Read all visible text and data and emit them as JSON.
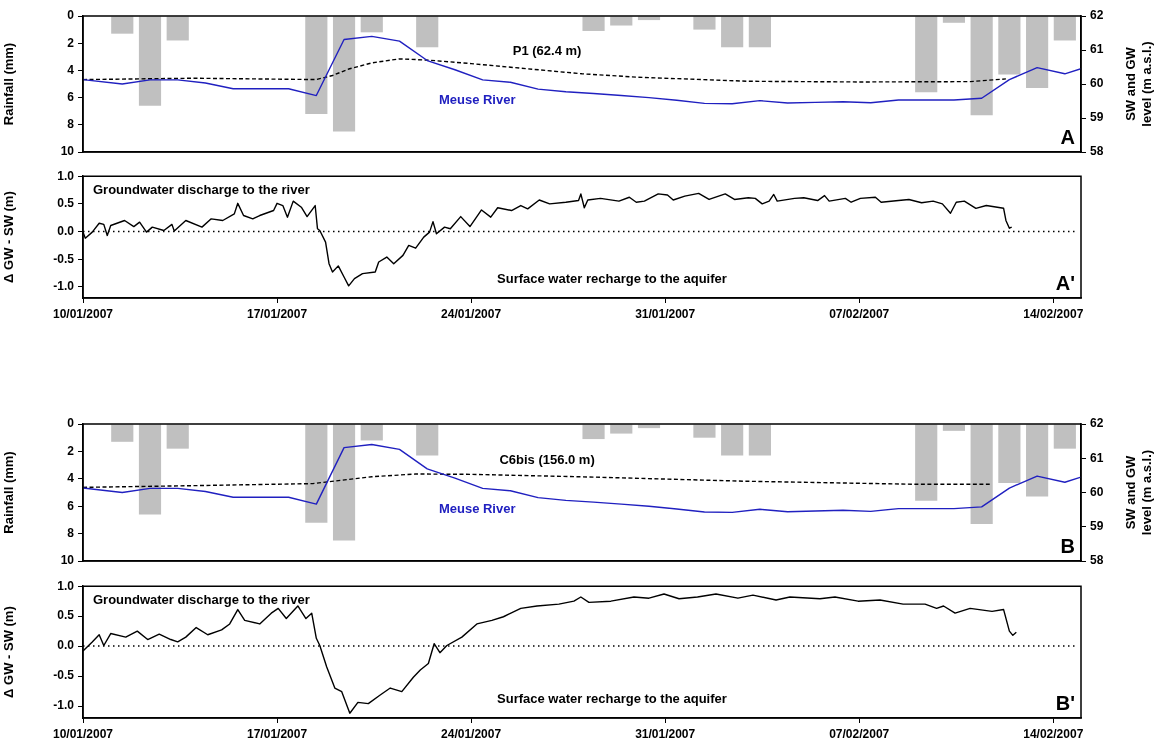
{
  "chart_data": [
    {
      "type": "bar",
      "ylabel": "Rainfall (mm)",
      "y2label": "SW and GW level (m a.s.l.)",
      "annotations": [
        "A"
      ],
      "xlim": [
        "2007-01-10",
        "2007-02-15"
      ],
      "ylim": [
        10,
        0
      ],
      "yticks": [
        0,
        2,
        4,
        6,
        8,
        10
      ],
      "y2lim": [
        58,
        62
      ],
      "y2ticks": [
        58,
        59,
        60,
        61,
        62
      ],
      "tick_labels": "y",
      "marker": "none",
      "series": [
        {
          "type": "bar",
          "color": "#c0c0c0",
          "x": [
            "2007-01-11T10:00",
            "2007-01-12T10:00",
            "2007-01-13T10:00",
            "2007-01-18T10:00",
            "2007-01-19T10:00",
            "2007-01-20T10:00",
            "2007-01-22T10:00",
            "2007-01-28T10:00",
            "2007-01-29T10:00",
            "2007-01-30T10:00",
            "2007-02-01T10:00",
            "2007-02-02T10:00",
            "2007-02-03T10:00",
            "2007-02-09T10:00",
            "2007-02-10T10:00",
            "2007-02-11T10:00",
            "2007-02-12T10:00",
            "2007-02-13T10:00",
            "2007-02-14T10:00"
          ],
          "values": [
            1.3,
            6.6,
            1.8,
            7.2,
            8.5,
            1.2,
            2.3,
            1.1,
            0.7,
            0.3,
            1.0,
            2.3,
            2.3,
            5.6,
            0.5,
            7.3,
            4.3,
            5.3,
            1.8
          ]
        },
        {
          "type": "line",
          "name": "Meuse River",
          "color": "#2020c0",
          "axis": "y2",
          "x": [
            "2007-01-10T00:00",
            "2007-01-11T10:00",
            "2007-01-12T10:00",
            "2007-01-13T10:00",
            "2007-01-14T10:00",
            "2007-01-15T10:00",
            "2007-01-16T10:00",
            "2007-01-17T10:00",
            "2007-01-18T10:00",
            "2007-01-19T10:00",
            "2007-01-20T10:00",
            "2007-01-21T10:00",
            "2007-01-22T10:00",
            "2007-01-23T10:00",
            "2007-01-24T10:00",
            "2007-01-25T10:00",
            "2007-01-26T10:00",
            "2007-01-27T10:00",
            "2007-01-28T10:00",
            "2007-01-29T10:00",
            "2007-01-30T10:00",
            "2007-01-31T10:00",
            "2007-02-01T10:00",
            "2007-02-02T10:00",
            "2007-02-03T10:00",
            "2007-02-04T10:00",
            "2007-02-05T10:00",
            "2007-02-06T10:00",
            "2007-02-07T10:00",
            "2007-02-08T10:00",
            "2007-02-09T10:00",
            "2007-02-10T10:00",
            "2007-02-11T10:00",
            "2007-02-12T10:00",
            "2007-02-13T10:00",
            "2007-02-14T10:00",
            "2007-02-15T00:00"
          ],
          "values": [
            60.13,
            60.0,
            60.12,
            60.12,
            60.03,
            59.86,
            59.86,
            59.86,
            59.66,
            61.31,
            61.4,
            61.26,
            60.69,
            60.42,
            60.12,
            60.05,
            59.85,
            59.77,
            59.72,
            59.66,
            59.6,
            59.52,
            59.43,
            59.42,
            59.51,
            59.44,
            59.46,
            59.48,
            59.45,
            59.53,
            59.53,
            59.53,
            59.58,
            60.13,
            60.48,
            60.3,
            60.45
          ]
        },
        {
          "type": "line",
          "name": "P1 (62.4 m)",
          "color": "#000000",
          "axis": "y2",
          "line_style": "dashed",
          "x": [
            "2007-01-10T00:00",
            "2007-01-14T00:00",
            "2007-01-18T10:00",
            "2007-01-19T00:00",
            "2007-01-19T14:00",
            "2007-01-20T10:00",
            "2007-01-21T10:00",
            "2007-01-22T12:00",
            "2007-01-24T00:00",
            "2007-01-26T00:00",
            "2007-01-28T00:00",
            "2007-01-30T00:00",
            "2007-02-03T00:00",
            "2007-02-07T00:00",
            "2007-02-11T00:00",
            "2007-02-12T07:00"
          ],
          "values": [
            60.13,
            60.17,
            60.13,
            60.25,
            60.44,
            60.62,
            60.74,
            60.7,
            60.6,
            60.45,
            60.3,
            60.2,
            60.08,
            60.06,
            60.07,
            60.15
          ]
        }
      ]
    },
    {
      "type": "line",
      "ylabel": "Δ GW - SW (m)",
      "annotations": [
        "Groundwater discharge to the river",
        "Surface water recharge to the aquifer",
        "A'"
      ],
      "xlim": [
        "2007-01-10",
        "2007-02-15"
      ],
      "xticks": [
        {
          "value": "2007-01-10",
          "label": "10/01/2007"
        },
        {
          "value": "2007-01-17",
          "label": "17/01/2007"
        },
        {
          "value": "2007-01-24",
          "label": "24/01/2007"
        },
        {
          "value": "2007-01-31",
          "label": "31/01/2007"
        },
        {
          "value": "2007-02-07",
          "label": "07/02/2007"
        },
        {
          "value": "2007-02-14",
          "label": "14/02/2007"
        }
      ],
      "ylim": [
        -1.2,
        1.0
      ],
      "yticks": [
        {
          "value": -1,
          "label": "-1.0"
        },
        -0.5,
        {
          "value": 0,
          "label": "0.0"
        },
        0.5,
        {
          "value": 1,
          "label": "1.0"
        }
      ],
      "marker": "none",
      "ref_lines": [
        {
          "axis": "y",
          "value": 0,
          "line_style": "dotted",
          "color": "#000000"
        }
      ],
      "series": [
        {
          "color": "#000000",
          "x": [
            "2007-01-10T00:00",
            "2007-01-10T02:00",
            "2007-01-10T08:00",
            "2007-01-10T14:00",
            "2007-01-10T18:00",
            "2007-01-10T21:00",
            "2007-01-11T00:00",
            "2007-01-11T12:00",
            "2007-01-11T20:00",
            "2007-01-12T01:00",
            "2007-01-12T07:00",
            "2007-01-12T12:00",
            "2007-01-12T22:00",
            "2007-01-13T05:00",
            "2007-01-13T07:00",
            "2007-01-13T17:00",
            "2007-01-14T07:00",
            "2007-01-14T15:00",
            "2007-01-15T01:00",
            "2007-01-15T11:00",
            "2007-01-15T14:00",
            "2007-01-15T19:00",
            "2007-01-16T03:00",
            "2007-01-16T09:00",
            "2007-01-16T21:00",
            "2007-01-17T00:00",
            "2007-01-17T05:00",
            "2007-01-17T09:00",
            "2007-01-17T14:00",
            "2007-01-17T21:00",
            "2007-01-18T02:00",
            "2007-01-18T09:00",
            "2007-01-18T11:00",
            "2007-01-18T13:00",
            "2007-01-18T18:00",
            "2007-01-18T21:00",
            "2007-01-19T00:00",
            "2007-01-19T05:00",
            "2007-01-19T10:00",
            "2007-01-19T14:00",
            "2007-01-19T19:00",
            "2007-01-20T02:00",
            "2007-01-20T13:00",
            "2007-01-20T16:00",
            "2007-01-20T23:00",
            "2007-01-21T05:00",
            "2007-01-21T13:00",
            "2007-01-21T18:00",
            "2007-01-22T00:00",
            "2007-01-22T07:00",
            "2007-01-22T12:00",
            "2007-01-22T15:00",
            "2007-01-22T18:00",
            "2007-01-23T01:00",
            "2007-01-23T06:00",
            "2007-01-23T15:00",
            "2007-01-23T23:00",
            "2007-01-24T09:00",
            "2007-01-24T17:00",
            "2007-01-24T23:00",
            "2007-01-25T11:00",
            "2007-01-25T19:00",
            "2007-01-26T01:00",
            "2007-01-26T11:00",
            "2007-01-26T20:00",
            "2007-01-27T10:00",
            "2007-01-27T21:00",
            "2007-01-27T23:00",
            "2007-01-28T02:00",
            "2007-01-28T05:00",
            "2007-01-28T16:00",
            "2007-01-29T08:00",
            "2007-01-29T17:00",
            "2007-01-29T23:00",
            "2007-01-30T06:00",
            "2007-01-30T18:00",
            "2007-01-31T02:00",
            "2007-01-31T07:00",
            "2007-01-31T17:00",
            "2007-02-01T05:00",
            "2007-02-01T14:00",
            "2007-02-02T04:00",
            "2007-02-02T12:00",
            "2007-02-03T00:00",
            "2007-02-03T06:00",
            "2007-02-03T12:00",
            "2007-02-03T18:00",
            "2007-02-03T22:00",
            "2007-02-04T01:00",
            "2007-02-04T16:00",
            "2007-02-05T00:00",
            "2007-02-05T12:00",
            "2007-02-05T18:00",
            "2007-02-05T22:00",
            "2007-02-06T12:00",
            "2007-02-06T17:00",
            "2007-02-07T01:00",
            "2007-02-07T14:00",
            "2007-02-07T19:00",
            "2007-02-08T10:00",
            "2007-02-08T19:00",
            "2007-02-09T06:00",
            "2007-02-09T16:00",
            "2007-02-10T00:00",
            "2007-02-10T07:00",
            "2007-02-10T12:00",
            "2007-02-10T19:00",
            "2007-02-11T05:00",
            "2007-02-11T14:00",
            "2007-02-12T05:00",
            "2007-02-12T07:00",
            "2007-02-12T10:00",
            "2007-02-12T12:00"
          ],
          "values": [
            -0.01,
            -0.12,
            -0.01,
            0.15,
            0.13,
            -0.07,
            0.11,
            0.2,
            0.09,
            0.17,
            -0.01,
            0.08,
            0.02,
            0.13,
            0.01,
            0.2,
            0.08,
            0.23,
            0.2,
            0.32,
            0.51,
            0.29,
            0.23,
            0.29,
            0.38,
            0.51,
            0.47,
            0.26,
            0.55,
            0.44,
            0.27,
            0.47,
            0.05,
            0.02,
            -0.19,
            -0.58,
            -0.73,
            -0.62,
            -0.82,
            -0.98,
            -0.85,
            -0.76,
            -0.73,
            -0.55,
            -0.46,
            -0.58,
            -0.43,
            -0.25,
            -0.3,
            -0.1,
            -0.01,
            0.18,
            -0.04,
            0.08,
            0.05,
            0.27,
            0.09,
            0.39,
            0.26,
            0.43,
            0.38,
            0.47,
            0.41,
            0.57,
            0.5,
            0.53,
            0.56,
            0.68,
            0.43,
            0.57,
            0.6,
            0.55,
            0.62,
            0.53,
            0.55,
            0.68,
            0.66,
            0.57,
            0.64,
            0.69,
            0.58,
            0.68,
            0.58,
            0.61,
            0.6,
            0.5,
            0.55,
            0.67,
            0.55,
            0.6,
            0.61,
            0.56,
            0.65,
            0.55,
            0.6,
            0.53,
            0.6,
            0.62,
            0.53,
            0.56,
            0.58,
            0.52,
            0.55,
            0.5,
            0.33,
            0.53,
            0.55,
            0.42,
            0.47,
            0.42,
            0.2,
            0.06,
            0.08
          ]
        }
      ]
    },
    {
      "type": "bar",
      "ylabel": "Rainfall (mm)",
      "y2label": "SW and GW level (m a.s.l.)",
      "annotations": [
        "B"
      ],
      "xlim": [
        "2007-01-10",
        "2007-02-15"
      ],
      "ylim": [
        10,
        0
      ],
      "yticks": [
        0,
        2,
        4,
        6,
        8,
        10
      ],
      "y2lim": [
        58,
        62
      ],
      "y2ticks": [
        58,
        59,
        60,
        61,
        62
      ],
      "tick_labels": "y",
      "marker": "none",
      "series": [
        {
          "type": "bar",
          "color": "#c0c0c0",
          "x": [
            "2007-01-11T10:00",
            "2007-01-12T10:00",
            "2007-01-13T10:00",
            "2007-01-18T10:00",
            "2007-01-19T10:00",
            "2007-01-20T10:00",
            "2007-01-22T10:00",
            "2007-01-28T10:00",
            "2007-01-29T10:00",
            "2007-01-30T10:00",
            "2007-02-01T10:00",
            "2007-02-02T10:00",
            "2007-02-03T10:00",
            "2007-02-09T10:00",
            "2007-02-10T10:00",
            "2007-02-11T10:00",
            "2007-02-12T10:00",
            "2007-02-13T10:00",
            "2007-02-14T10:00"
          ],
          "values": [
            1.3,
            6.6,
            1.8,
            7.2,
            8.5,
            1.2,
            2.3,
            1.1,
            0.7,
            0.3,
            1.0,
            2.3,
            2.3,
            5.6,
            0.5,
            7.3,
            4.3,
            5.3,
            1.8
          ]
        },
        {
          "type": "line",
          "name": "Meuse River",
          "color": "#2020c0",
          "axis": "y2",
          "x": [
            "2007-01-10T00:00",
            "2007-01-11T10:00",
            "2007-01-12T10:00",
            "2007-01-13T10:00",
            "2007-01-14T10:00",
            "2007-01-15T10:00",
            "2007-01-16T10:00",
            "2007-01-17T10:00",
            "2007-01-18T10:00",
            "2007-01-19T10:00",
            "2007-01-20T10:00",
            "2007-01-21T10:00",
            "2007-01-22T10:00",
            "2007-01-23T10:00",
            "2007-01-24T10:00",
            "2007-01-25T10:00",
            "2007-01-26T10:00",
            "2007-01-27T10:00",
            "2007-01-28T10:00",
            "2007-01-29T10:00",
            "2007-01-30T10:00",
            "2007-01-31T10:00",
            "2007-02-01T10:00",
            "2007-02-02T10:00",
            "2007-02-03T10:00",
            "2007-02-04T10:00",
            "2007-02-05T10:00",
            "2007-02-06T10:00",
            "2007-02-07T10:00",
            "2007-02-08T10:00",
            "2007-02-09T10:00",
            "2007-02-10T10:00",
            "2007-02-11T10:00",
            "2007-02-12T10:00",
            "2007-02-13T10:00",
            "2007-02-14T10:00",
            "2007-02-15T00:00"
          ],
          "values": [
            60.13,
            60.0,
            60.12,
            60.12,
            60.03,
            59.86,
            59.86,
            59.86,
            59.66,
            61.31,
            61.4,
            61.26,
            60.69,
            60.42,
            60.12,
            60.05,
            59.85,
            59.77,
            59.72,
            59.66,
            59.6,
            59.52,
            59.43,
            59.42,
            59.51,
            59.44,
            59.46,
            59.48,
            59.45,
            59.53,
            59.53,
            59.53,
            59.58,
            60.13,
            60.48,
            60.3,
            60.45
          ]
        },
        {
          "type": "line",
          "name": "C6bis (156.0 m)",
          "color": "#000000",
          "axis": "y2",
          "line_style": "dashed",
          "x": [
            "2007-01-10T00:00",
            "2007-01-14T00:00",
            "2007-01-18T07:00",
            "2007-01-20T10:00",
            "2007-01-22T00:00",
            "2007-01-24T00:00",
            "2007-01-28T10:00",
            "2007-02-02T20:00",
            "2007-02-09T00:00",
            "2007-02-11T17:00"
          ],
          "values": [
            60.15,
            60.2,
            60.26,
            60.46,
            60.54,
            60.53,
            60.45,
            60.33,
            60.24,
            60.24
          ]
        }
      ]
    },
    {
      "type": "line",
      "ylabel": "Δ GW - SW (m)",
      "annotations": [
        "Groundwater discharge to the river",
        "Surface water recharge to the aquifer",
        "B'"
      ],
      "xlim": [
        "2007-01-10",
        "2007-02-15"
      ],
      "xticks": [
        {
          "value": "2007-01-10",
          "label": "10/01/2007"
        },
        {
          "value": "2007-01-17",
          "label": "17/01/2007"
        },
        {
          "value": "2007-01-24",
          "label": "24/01/2007"
        },
        {
          "value": "2007-01-31",
          "label": "31/01/2007"
        },
        {
          "value": "2007-02-07",
          "label": "07/02/2007"
        },
        {
          "value": "2007-02-14",
          "label": "14/02/2007"
        }
      ],
      "ylim": [
        -1.2,
        1.0
      ],
      "yticks": [
        {
          "value": -1,
          "label": "-1.0"
        },
        -0.5,
        {
          "value": 0,
          "label": "0.0"
        },
        0.5,
        {
          "value": 1,
          "label": "1.0"
        }
      ],
      "marker": "none",
      "ref_lines": [
        {
          "axis": "y",
          "value": 0,
          "line_style": "dotted",
          "color": "#000000"
        }
      ],
      "series": [
        {
          "color": "#000000",
          "x": [
            "2007-01-10T00:00",
            "2007-01-10T08:00",
            "2007-01-10T14:00",
            "2007-01-10T18:00",
            "2007-01-11T00:00",
            "2007-01-11T13:00",
            "2007-01-11T23:00",
            "2007-01-12T08:00",
            "2007-01-12T18:00",
            "2007-01-13T04:00",
            "2007-01-13T10:00",
            "2007-01-13T17:00",
            "2007-01-14T02:00",
            "2007-01-14T12:00",
            "2007-01-15T00:00",
            "2007-01-15T07:00",
            "2007-01-15T14:00",
            "2007-01-15T20:00",
            "2007-01-16T09:00",
            "2007-01-16T19:00",
            "2007-01-17T01:00",
            "2007-01-17T08:00",
            "2007-01-17T18:00",
            "2007-01-18T01:00",
            "2007-01-18T06:00",
            "2007-01-18T10:00",
            "2007-01-18T13:00",
            "2007-01-18T19:00",
            "2007-01-19T02:00",
            "2007-01-19T08:00",
            "2007-01-19T15:00",
            "2007-01-19T22:00",
            "2007-01-20T07:00",
            "2007-01-20T17:00",
            "2007-01-21T02:00",
            "2007-01-21T12:00",
            "2007-01-21T22:00",
            "2007-01-22T04:00",
            "2007-01-22T11:00",
            "2007-01-22T16:00",
            "2007-01-22T21:00",
            "2007-01-23T03:00",
            "2007-01-23T16:00",
            "2007-01-24T05:00",
            "2007-01-24T18:00",
            "2007-01-25T04:00",
            "2007-01-25T19:00",
            "2007-01-26T09:00",
            "2007-01-27T04:00",
            "2007-01-27T17:00",
            "2007-01-27T23:00",
            "2007-01-28T06:00",
            "2007-01-29T01:00",
            "2007-01-29T21:00",
            "2007-01-30T10:00",
            "2007-01-30T23:00",
            "2007-01-31T12:00",
            "2007-02-01T04:00",
            "2007-02-01T20:00",
            "2007-02-02T15:00",
            "2007-02-03T04:00",
            "2007-02-04T00:00",
            "2007-02-04T12:00",
            "2007-02-05T14:00",
            "2007-02-06T03:00",
            "2007-02-06T23:00",
            "2007-02-07T18:00",
            "2007-02-08T14:00",
            "2007-02-09T09:00",
            "2007-02-09T19:00",
            "2007-02-10T01:00",
            "2007-02-10T11:00",
            "2007-02-11T00:00",
            "2007-02-11T19:00",
            "2007-02-12T05:00",
            "2007-02-12T10:00",
            "2007-02-12T13:00",
            "2007-02-12T16:00"
          ],
          "values": [
            -0.08,
            0.07,
            0.19,
            0.01,
            0.21,
            0.15,
            0.25,
            0.11,
            0.2,
            0.11,
            0.07,
            0.15,
            0.31,
            0.19,
            0.27,
            0.37,
            0.61,
            0.43,
            0.37,
            0.55,
            0.63,
            0.46,
            0.67,
            0.46,
            0.55,
            0.13,
            0.01,
            -0.35,
            -0.7,
            -0.76,
            -1.12,
            -0.94,
            -0.96,
            -0.82,
            -0.7,
            -0.76,
            -0.52,
            -0.4,
            -0.29,
            0.04,
            -0.11,
            0.01,
            0.15,
            0.37,
            0.43,
            0.49,
            0.63,
            0.67,
            0.7,
            0.75,
            0.82,
            0.73,
            0.75,
            0.82,
            0.8,
            0.87,
            0.79,
            0.82,
            0.87,
            0.8,
            0.85,
            0.77,
            0.82,
            0.79,
            0.82,
            0.75,
            0.77,
            0.7,
            0.7,
            0.63,
            0.67,
            0.55,
            0.63,
            0.58,
            0.61,
            0.25,
            0.18,
            0.23
          ]
        }
      ]
    }
  ]
}
